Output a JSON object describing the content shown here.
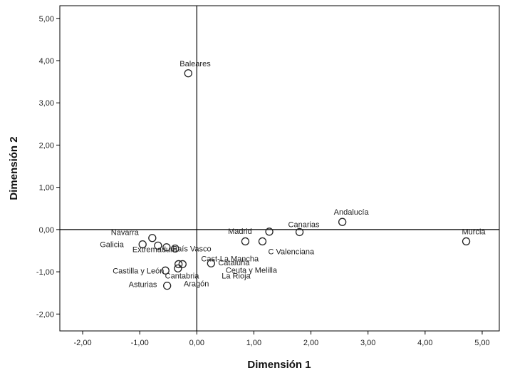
{
  "chart_data": {
    "type": "scatter",
    "xlabel": "Dimensión 1",
    "ylabel": "Dimensión 2",
    "xlim": [
      -2.4,
      5.3
    ],
    "ylim": [
      -2.4,
      5.3
    ],
    "xticks": [
      "-2,00",
      "-1,00",
      "0,00",
      "1,00",
      "2,00",
      "3,00",
      "4,00",
      "5,00"
    ],
    "yticks": [
      "-2,00",
      "-1,00",
      "0,00",
      "1,00",
      "2,00",
      "3,00",
      "4,00",
      "5,00"
    ],
    "reference_lines": {
      "x": 0,
      "y": 0
    },
    "grid": false,
    "marker": "open-circle",
    "points": [
      {
        "label": "Baleares",
        "x": -0.15,
        "y": 3.7
      },
      {
        "label": "Andalucía",
        "x": 2.55,
        "y": 0.18
      },
      {
        "label": "Canarias",
        "x": 1.8,
        "y": -0.06
      },
      {
        "label": "Murcia",
        "x": 4.72,
        "y": -0.28
      },
      {
        "label": "Madrid",
        "x": 1.27,
        "y": -0.05
      },
      {
        "label": "C Valenciana",
        "x": 1.15,
        "y": -0.28
      },
      {
        "label": "Cast-La Mancha",
        "x": 0.85,
        "y": -0.28
      },
      {
        "label": "Extremadura",
        "x": -0.38,
        "y": -0.45
      },
      {
        "label": "Navarra",
        "x": -0.78,
        "y": -0.2
      },
      {
        "label": "Galicia",
        "x": -0.95,
        "y": -0.35
      },
      {
        "label": "País Vasco",
        "x": -0.53,
        "y": -0.42
      },
      {
        "label": "Castilla y León",
        "x": -0.55,
        "y": -0.97
      },
      {
        "label": "Asturias",
        "x": -0.52,
        "y": -1.33
      },
      {
        "label": "Cantabria",
        "x": -0.32,
        "y": -0.82
      },
      {
        "label": "Aragón",
        "x": -0.33,
        "y": -0.92
      },
      {
        "label": "Cataluña",
        "x": 0.25,
        "y": -0.8
      },
      {
        "label": "La Rioja",
        "x": -0.25,
        "y": -0.82
      },
      {
        "label": "Ceuta y Melilla",
        "x": -0.68,
        "y": -0.38
      }
    ]
  }
}
